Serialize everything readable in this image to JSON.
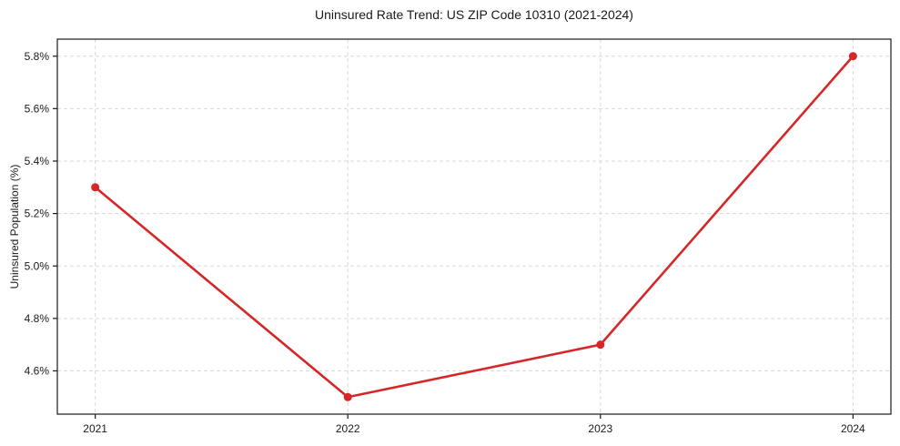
{
  "chart_data": {
    "type": "line",
    "title": "Uninsured Rate Trend: US ZIP Code 10310 (2021-2024)",
    "xlabel": "",
    "ylabel": "Uninsured Population (%)",
    "x": [
      2021,
      2022,
      2023,
      2024
    ],
    "values": [
      5.3,
      4.5,
      4.7,
      5.8
    ],
    "x_tick_labels": [
      "2021",
      "2022",
      "2023",
      "2024"
    ],
    "y_ticks": [
      4.6,
      4.8,
      5.0,
      5.2,
      5.4,
      5.6,
      5.8
    ],
    "y_tick_labels": [
      "4.6%",
      "4.8%",
      "5.0%",
      "5.2%",
      "5.4%",
      "5.6%",
      "5.8%"
    ],
    "xlim": [
      2020.85,
      2024.15
    ],
    "ylim": [
      4.435,
      5.865
    ],
    "grid": true,
    "legend": "none",
    "line_color": "#d62728",
    "marker_color": "#d62728",
    "grid_color": "#d9d9d9",
    "axis_color": "#1a1a1a",
    "background_color": "#ffffff"
  }
}
